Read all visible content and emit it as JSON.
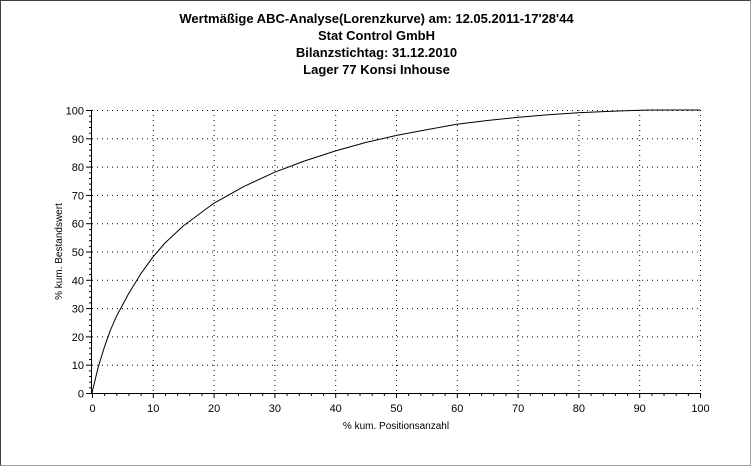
{
  "window": {
    "title_lines": [
      "Wertmäßige ABC-Analyse(Lorenzkurve) am: 12.05.2011-17'28'44",
      "Stat Control GmbH",
      "Bilanzstichtag: 31.12.2010",
      "Lager 77 Konsi Inhouse"
    ]
  },
  "chart_data": {
    "type": "line",
    "title": "Wertmäßige ABC-Analyse(Lorenzkurve) am: 12.05.2011-17'28'44",
    "xlabel": "% kum. Positionsanzahl",
    "ylabel": "% kum. Bestandswert",
    "xlim": [
      0,
      100
    ],
    "ylim": [
      0,
      100
    ],
    "xticks": [
      0,
      10,
      20,
      30,
      40,
      50,
      60,
      70,
      80,
      90,
      100
    ],
    "yticks": [
      0,
      10,
      20,
      30,
      40,
      50,
      60,
      70,
      80,
      90,
      100
    ],
    "grid": "dotted",
    "series": [
      {
        "color": "#000000",
        "x": [
          0,
          1,
          2,
          3,
          4,
          5,
          6,
          8,
          10,
          12,
          15,
          20,
          25,
          30,
          35,
          40,
          45,
          50,
          55,
          60,
          65,
          70,
          75,
          80,
          85,
          90,
          92,
          95,
          100
        ],
        "y": [
          0,
          9,
          16,
          22,
          27,
          31,
          35,
          42,
          48,
          53,
          59,
          67,
          73,
          78,
          82,
          85.5,
          88.5,
          91,
          93,
          95,
          96.3,
          97.4,
          98.3,
          99,
          99.5,
          99.9,
          100,
          100,
          100
        ]
      }
    ]
  }
}
